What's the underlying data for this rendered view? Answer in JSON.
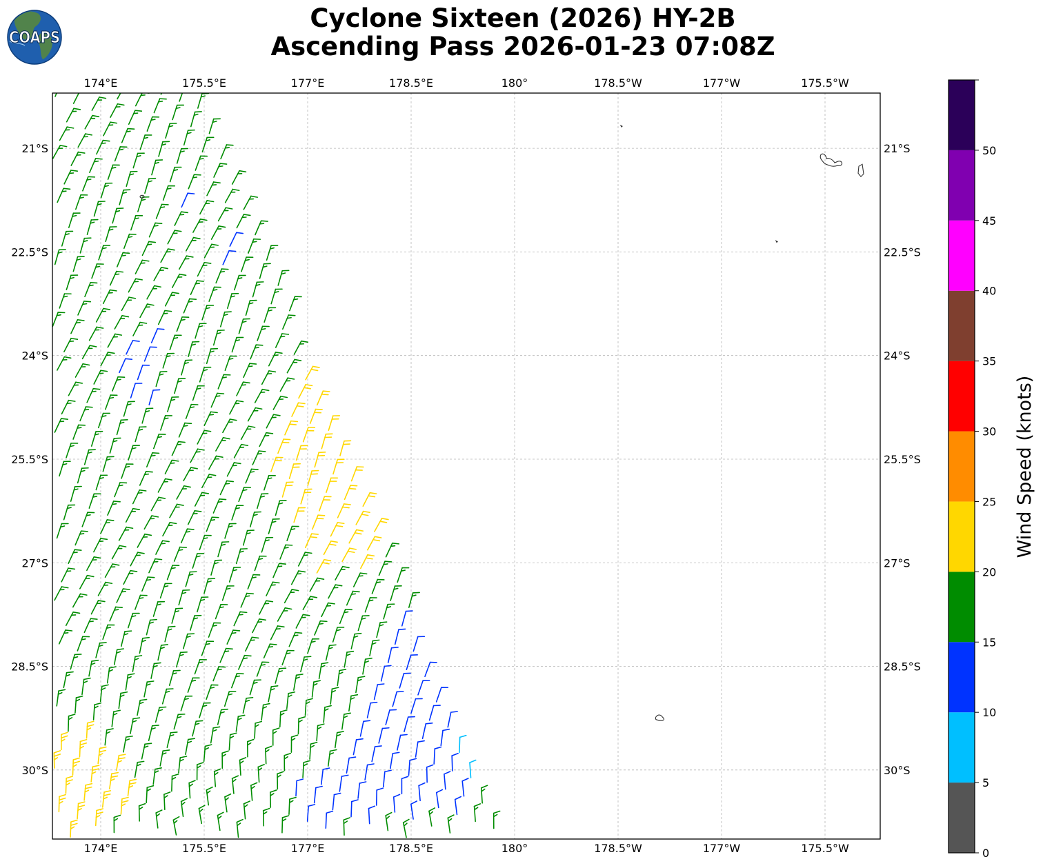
{
  "title": {
    "line1": "Cyclone Sixteen (2026) HY-2B",
    "line2": "Ascending Pass 2026-01-23 07:08Z"
  },
  "logo": {
    "text": "COAPS"
  },
  "map": {
    "lon_range": [
      173.3,
      185.3
    ],
    "lat_range": [
      -31.0,
      -20.2
    ],
    "lon_ticks": [
      {
        "value": 174.0,
        "label": "174°E"
      },
      {
        "value": 175.5,
        "label": "175.5°E"
      },
      {
        "value": 177.0,
        "label": "177°E"
      },
      {
        "value": 178.5,
        "label": "178.5°E"
      },
      {
        "value": 180.0,
        "label": "180°"
      },
      {
        "value": 181.5,
        "label": "178.5°W"
      },
      {
        "value": 183.0,
        "label": "177°W"
      },
      {
        "value": 184.5,
        "label": "175.5°W"
      }
    ],
    "lat_ticks": [
      {
        "value": -21.0,
        "label": "21°S"
      },
      {
        "value": -22.5,
        "label": "22.5°S"
      },
      {
        "value": -24.0,
        "label": "24°S"
      },
      {
        "value": -25.5,
        "label": "25.5°S"
      },
      {
        "value": -27.0,
        "label": "27°S"
      },
      {
        "value": -28.5,
        "label": "28.5°S"
      },
      {
        "value": -30.0,
        "label": "30°S"
      }
    ],
    "gridlines": true,
    "gridline_style": "dashed",
    "swath_outline_deg": [
      [
        173.3,
        -20.2
      ],
      [
        175.4,
        -20.2
      ],
      [
        177.15,
        -24.3
      ],
      [
        179.7,
        -30.75
      ],
      [
        179.7,
        -31.0
      ],
      [
        173.3,
        -31.0
      ]
    ],
    "wind_regions_deg": [
      {
        "speed_kt": 11,
        "poly": [
          [
            174.25,
            -23.75
          ],
          [
            174.75,
            -23.75
          ],
          [
            174.75,
            -24.85
          ],
          [
            174.25,
            -24.85
          ]
        ]
      },
      {
        "speed_kt": 12,
        "poly": [
          [
            175.15,
            -21.6
          ],
          [
            175.45,
            -21.6
          ],
          [
            175.35,
            -21.95
          ],
          [
            175.05,
            -21.95
          ]
        ]
      },
      {
        "speed_kt": 12,
        "poly": [
          [
            175.7,
            -22.2
          ],
          [
            175.95,
            -22.2
          ],
          [
            175.85,
            -22.7
          ],
          [
            175.6,
            -22.7
          ]
        ]
      },
      {
        "speed_kt": 21,
        "poly": [
          [
            176.8,
            -24.0
          ],
          [
            177.3,
            -23.95
          ],
          [
            178.2,
            -26.55
          ],
          [
            177.95,
            -27.2
          ],
          [
            177.15,
            -27.2
          ],
          [
            176.3,
            -25.7
          ]
        ]
      },
      {
        "speed_kt": 23,
        "poly": [
          [
            173.3,
            -29.6
          ],
          [
            173.9,
            -29.5
          ],
          [
            174.3,
            -29.9
          ],
          [
            174.6,
            -30.4
          ],
          [
            173.9,
            -31.0
          ],
          [
            173.3,
            -31.0
          ]
        ]
      },
      {
        "speed_kt": 12,
        "poly": [
          [
            178.4,
            -27.8
          ],
          [
            178.75,
            -27.6
          ],
          [
            179.1,
            -28.9
          ],
          [
            179.3,
            -29.6
          ],
          [
            179.5,
            -30.7
          ],
          [
            176.8,
            -31.0
          ],
          [
            176.7,
            -30.4
          ],
          [
            177.6,
            -29.8
          ],
          [
            178.1,
            -28.5
          ]
        ]
      },
      {
        "speed_kt": 8,
        "poly": [
          [
            179.0,
            -29.0
          ],
          [
            179.25,
            -29.05
          ],
          [
            179.45,
            -30.2
          ],
          [
            179.2,
            -30.25
          ]
        ]
      }
    ],
    "wind_base_speed_kt": 17,
    "wind_direction_note": "southeast",
    "islands": [
      {
        "name": "",
        "lonlat": [
          181.55,
          -20.68
        ],
        "size": "dot"
      },
      {
        "name": "",
        "lonlat": [
          183.8,
          -22.35
        ],
        "size": "dot"
      },
      {
        "name": "",
        "lonlat": [
          174.6,
          -21.7
        ],
        "size": "small"
      },
      {
        "name": "",
        "lonlat": [
          184.6,
          -21.15
        ],
        "size": "island"
      },
      {
        "name": "",
        "lonlat": [
          185.02,
          -21.35
        ],
        "size": "sliver"
      },
      {
        "name": "",
        "lonlat": [
          182.1,
          -29.25
        ],
        "size": "small-island"
      }
    ]
  },
  "colorbar": {
    "title": "Wind Speed (knots)",
    "bins": [
      {
        "from": 0,
        "to": 5,
        "color": "#555555"
      },
      {
        "from": 5,
        "to": 10,
        "color": "#00bfff"
      },
      {
        "from": 10,
        "to": 15,
        "color": "#0033ff"
      },
      {
        "from": 15,
        "to": 20,
        "color": "#008c00"
      },
      {
        "from": 20,
        "to": 25,
        "color": "#ffd700"
      },
      {
        "from": 25,
        "to": 30,
        "color": "#ff8c00"
      },
      {
        "from": 30,
        "to": 35,
        "color": "#ff0000"
      },
      {
        "from": 35,
        "to": 40,
        "color": "#7f3f2f"
      },
      {
        "from": 40,
        "to": 45,
        "color": "#ff00ff"
      },
      {
        "from": 45,
        "to": 50,
        "color": "#8000b0"
      },
      {
        "from": 50,
        "to": 55,
        "color": "#2b0059"
      }
    ],
    "tick_labels": [
      "0",
      "5",
      "10",
      "15",
      "20",
      "25",
      "30",
      "35",
      "40",
      "45",
      "50"
    ]
  }
}
